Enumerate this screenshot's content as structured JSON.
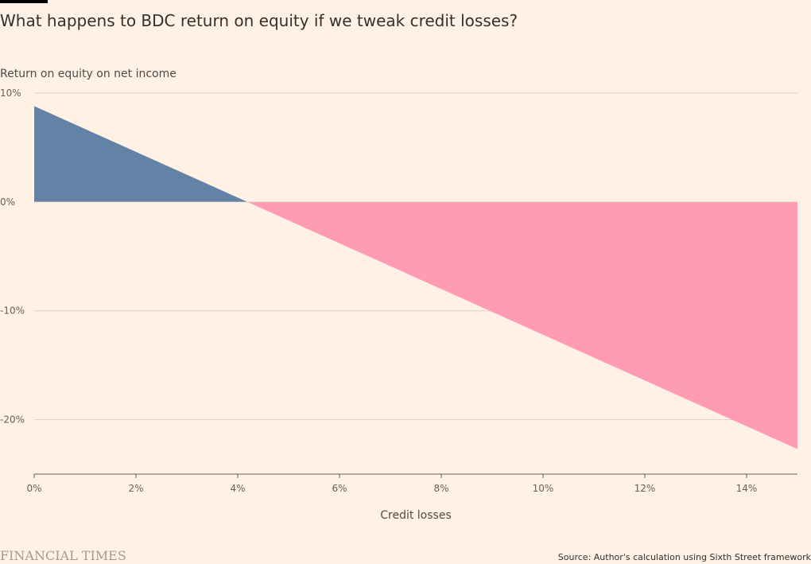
{
  "header": {
    "title": "What happens to BDC return on equity if we tweak credit losses?"
  },
  "footer": {
    "brand": "FINANCIAL TIMES",
    "source": "Source: Author's calculation using Sixth Street framework"
  },
  "colors": {
    "background": "#fff1e5",
    "positive": "#6283a6",
    "negative": "#ff9bb5",
    "gridline": "#d9cfc5",
    "axis": "#66605c"
  },
  "chart_data": {
    "type": "area",
    "title": "What happens to BDC return on equity if we tweak credit losses?",
    "ylabel": "Return on equity on net income",
    "xlabel": "Credit losses",
    "xlim": [
      0,
      15
    ],
    "ylim": [
      -25,
      10
    ],
    "x_ticks": [
      0,
      2,
      4,
      6,
      8,
      10,
      12,
      14
    ],
    "x_tick_labels": [
      "0%",
      "2%",
      "4%",
      "6%",
      "8%",
      "10%",
      "12%",
      "14%"
    ],
    "y_ticks": [
      10,
      0,
      -10,
      -20
    ],
    "y_tick_labels": [
      "10%",
      "0%",
      "-10%",
      "-20%"
    ],
    "grid": true,
    "series": [
      {
        "x": [
          0,
          15
        ],
        "y": [
          8.8,
          -22.7
        ]
      }
    ]
  }
}
